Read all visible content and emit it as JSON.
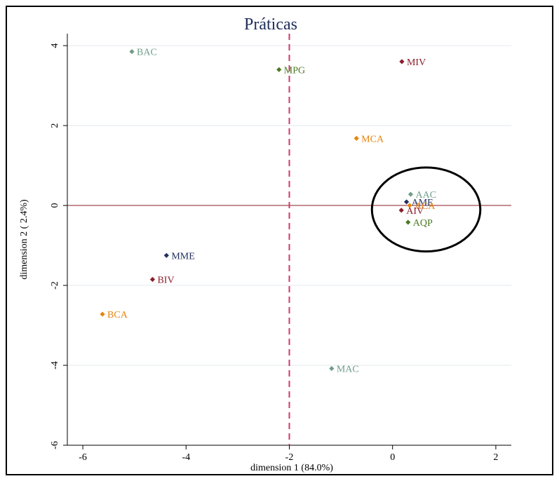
{
  "chart_data": {
    "type": "scatter",
    "title": "Práticas",
    "xlabel": "dimension 1 (84.0%)",
    "ylabel": "dimension 2 ( 2.4%)",
    "xlim": [
      -6.3,
      2.3
    ],
    "ylim": [
      -6,
      4.3
    ],
    "xticks": [
      -6,
      -4,
      -2,
      0,
      2
    ],
    "yticks": [
      -6,
      -4,
      -2,
      0,
      2,
      4
    ],
    "grid": true,
    "reference_lines": {
      "vertical_x": -2,
      "horizontal_y": 0
    },
    "points": [
      {
        "label": "BAC",
        "x": -5.05,
        "y": 3.85,
        "color": "#6f9c8a"
      },
      {
        "label": "MPG",
        "x": -2.2,
        "y": 3.4,
        "color": "#4a7a22"
      },
      {
        "label": "MIV",
        "x": 0.18,
        "y": 3.6,
        "color": "#8b1e2a"
      },
      {
        "label": "MCA",
        "x": -0.7,
        "y": 1.68,
        "color": "#e8830f"
      },
      {
        "label": "AAC",
        "x": 0.35,
        "y": 0.28,
        "color": "#6f9c8a"
      },
      {
        "label": "AME",
        "x": 0.27,
        "y": 0.09,
        "color": "#1f2e5c"
      },
      {
        "label": "ACA",
        "x": 0.33,
        "y": 0.0,
        "color": "#e8830f"
      },
      {
        "label": "AIV",
        "x": 0.17,
        "y": -0.12,
        "color": "#8b1e2a"
      },
      {
        "label": "AQP",
        "x": 0.3,
        "y": -0.42,
        "color": "#4a7a22"
      },
      {
        "label": "MME",
        "x": -4.38,
        "y": -1.25,
        "color": "#1f2e5c"
      },
      {
        "label": "BIV",
        "x": -4.65,
        "y": -1.85,
        "color": "#8b1e2a"
      },
      {
        "label": "BCA",
        "x": -5.62,
        "y": -2.72,
        "color": "#e8830f"
      },
      {
        "label": "MAC",
        "x": -1.18,
        "y": -4.08,
        "color": "#6f9c8a"
      }
    ],
    "highlight_circle": {
      "cx": 0.65,
      "cy": -0.1,
      "rx": 1.05,
      "ry": 1.05
    },
    "colors": {
      "title": "#1f2e5c",
      "grid": "#e3e8ee",
      "vline": "#d6336c",
      "hline": "#8b1e2a"
    }
  }
}
